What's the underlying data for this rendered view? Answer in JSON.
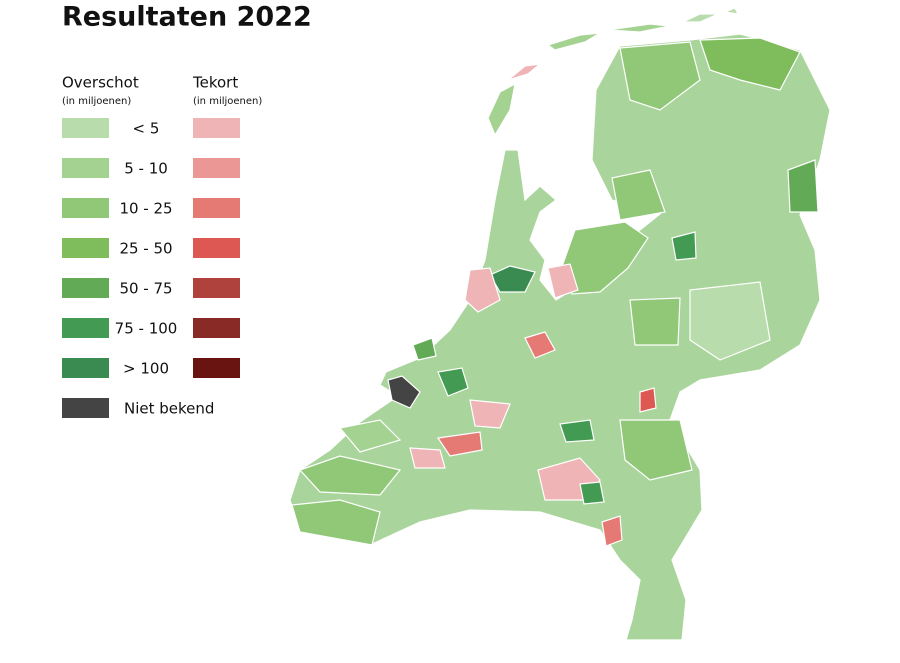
{
  "title": "Resultaten 2022",
  "legend": {
    "surplus": {
      "title": "Overschot",
      "subtitle": "(in miljoenen)",
      "items": [
        {
          "label": "< 5",
          "color": "#b8dcac"
        },
        {
          "label": "5 - 10",
          "color": "#a3d291"
        },
        {
          "label": "10 - 25",
          "color": "#90c878"
        },
        {
          "label": "25 - 50",
          "color": "#7fbd5c"
        },
        {
          "label": "50 - 75",
          "color": "#63aa56"
        },
        {
          "label": "75 - 100",
          "color": "#439a53"
        },
        {
          "label": "> 100",
          "color": "#3a8b52"
        }
      ]
    },
    "deficit": {
      "title": "Tekort",
      "subtitle": "(in miljoenen)",
      "colors": [
        "#efb4b5",
        "#eb9795",
        "#e57a74",
        "#de5853",
        "#b0423d",
        "#8a2a27",
        "#6a1411"
      ]
    },
    "unknown": {
      "label": "Niet bekend",
      "color": "#444444"
    }
  }
}
